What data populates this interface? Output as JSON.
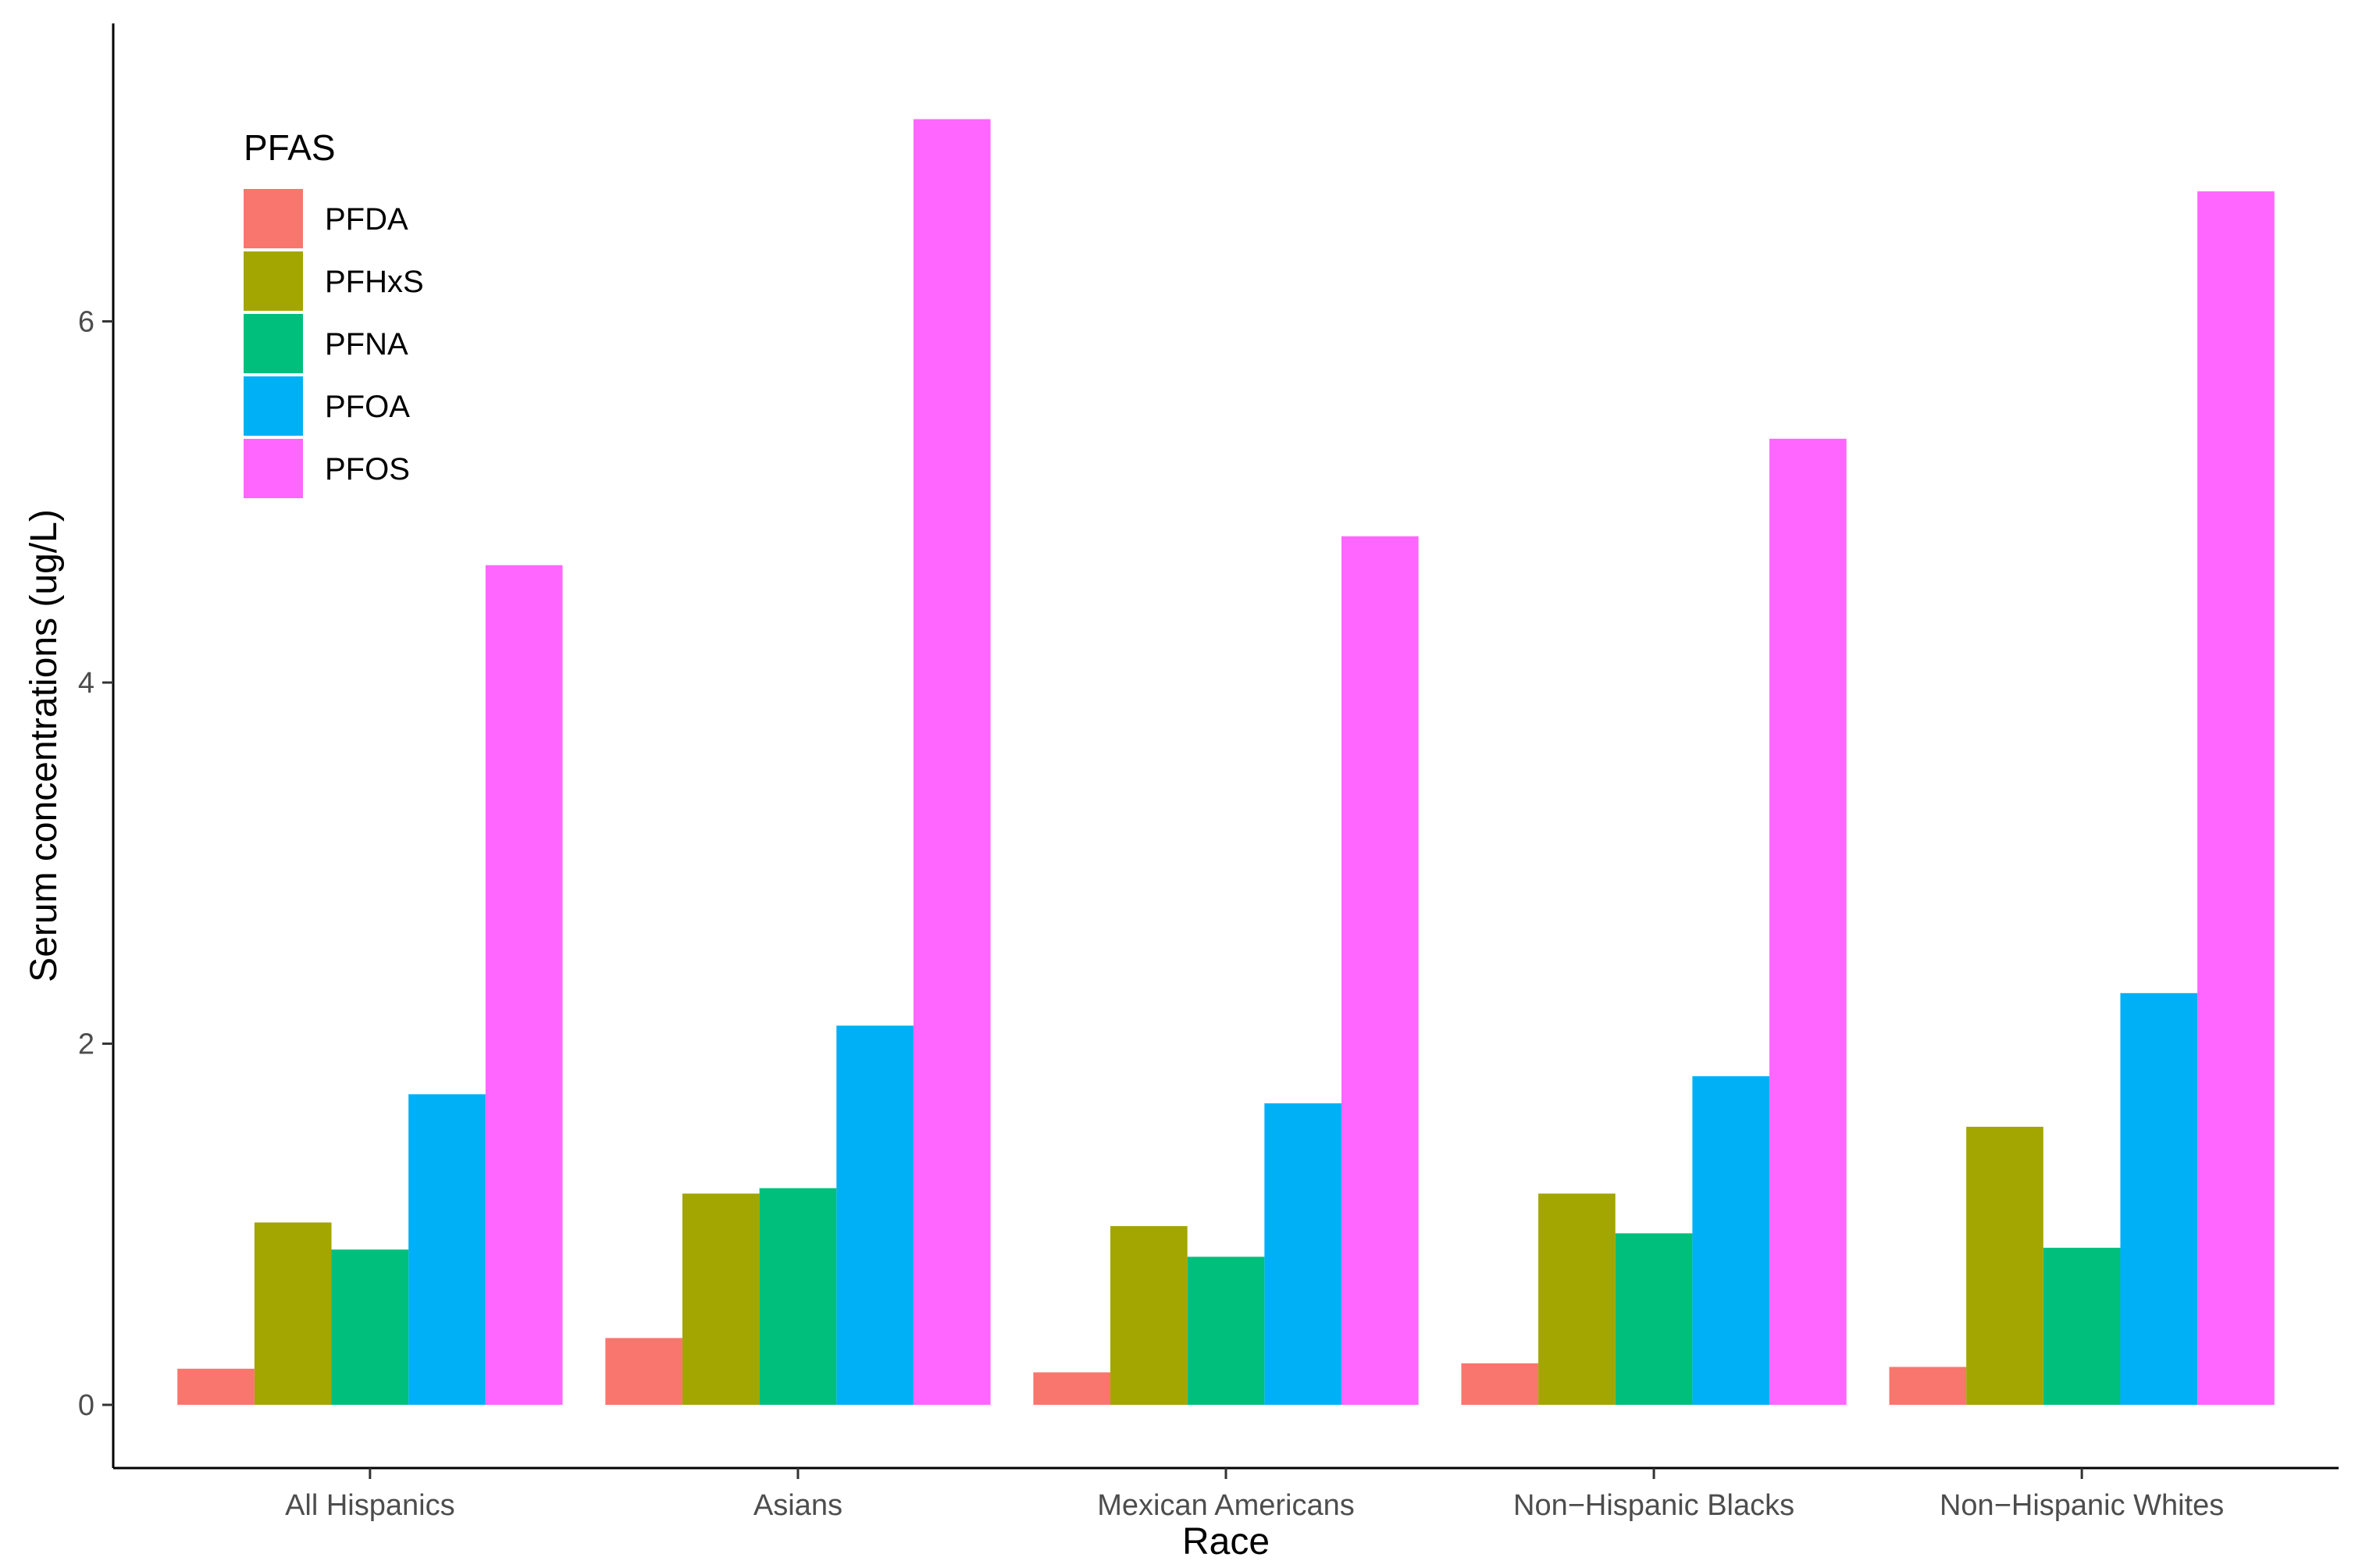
{
  "chart_data": {
    "type": "bar",
    "title": "",
    "xlabel": "Race",
    "ylabel": "Serum concentrations (ug/L)",
    "ylim": [
      -0.35,
      7.65
    ],
    "yticks": [
      0,
      2,
      4,
      6
    ],
    "grid": false,
    "legend": {
      "title": "PFAS",
      "position": "top-left"
    },
    "categories": [
      "All Hispanics",
      "Asians",
      "Mexican Americans",
      "Non−Hispanic Blacks",
      "Non−Hispanic Whites"
    ],
    "series": [
      {
        "name": "PFDA",
        "color": "#F8766D",
        "values": [
          0.2,
          0.37,
          0.18,
          0.23,
          0.21
        ]
      },
      {
        "name": "PFHxS",
        "color": "#A3A500",
        "values": [
          1.01,
          1.17,
          0.99,
          1.17,
          1.54
        ]
      },
      {
        "name": "PFNA",
        "color": "#00BF7D",
        "values": [
          0.86,
          1.2,
          0.82,
          0.95,
          0.87
        ]
      },
      {
        "name": "PFOA",
        "color": "#00B0F6",
        "values": [
          1.72,
          2.1,
          1.67,
          1.82,
          2.28
        ]
      },
      {
        "name": "PFOS",
        "color": "#FF66FF",
        "values": [
          4.65,
          7.12,
          4.81,
          5.35,
          6.72
        ]
      }
    ]
  }
}
